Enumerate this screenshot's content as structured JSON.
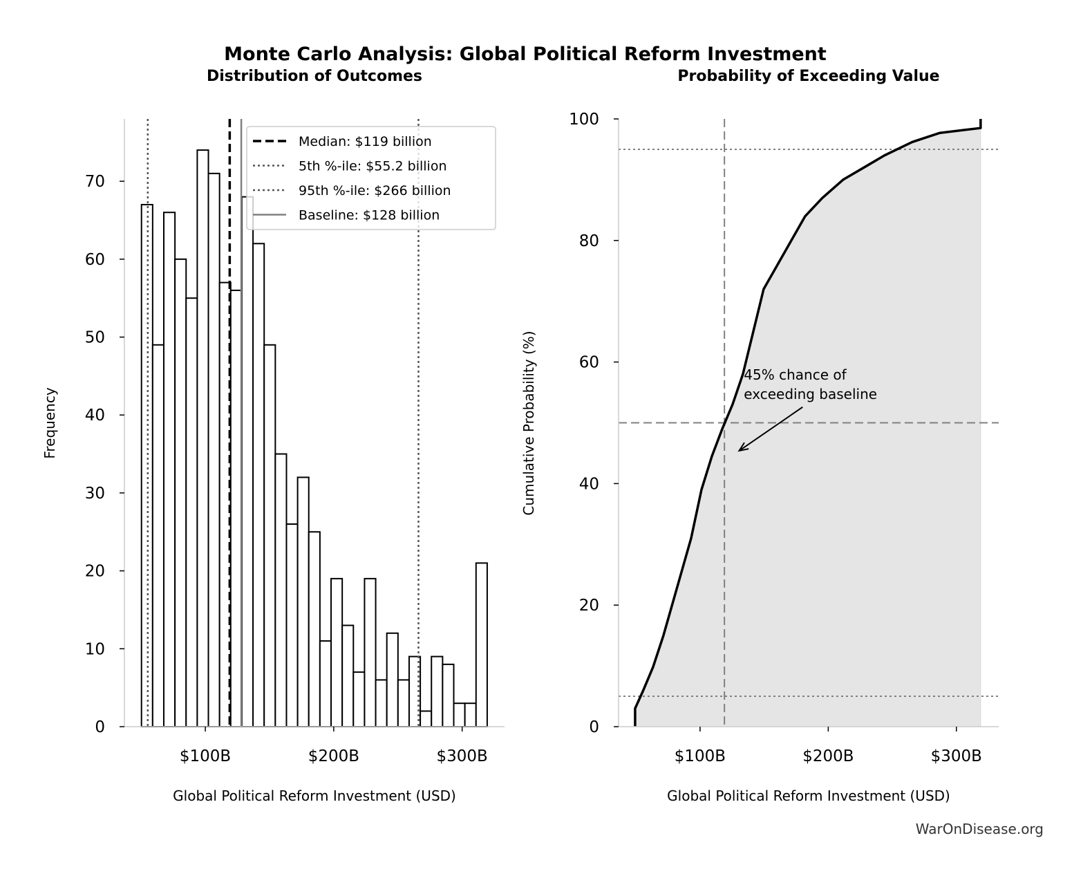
{
  "title": "Monte Carlo Analysis: Global Political Reform Investment",
  "watermark": "WarOnDisease.org",
  "colors": {
    "bar_edge": "#000000",
    "bar_fill": "#ffffff",
    "cdf_fill": "#e5e5e5",
    "median": "#000000",
    "percentile": "#555555",
    "baseline": "#808080",
    "ref_line": "#808080"
  },
  "chart_data": [
    {
      "type": "bar",
      "title": "Distribution of Outcomes",
      "xlabel": "Global Political Reform Investment (USD)",
      "ylabel": "Frequency",
      "xlim": [
        37,
        333
      ],
      "ylim": [
        0,
        78
      ],
      "bin_start": 50.3,
      "bin_end": 319.5,
      "values": [
        67,
        49,
        66,
        60,
        55,
        74,
        71,
        57,
        56,
        68,
        62,
        49,
        35,
        26,
        32,
        25,
        11,
        19,
        13,
        7,
        19,
        6,
        12,
        6,
        9,
        2,
        9,
        8,
        3,
        3,
        21
      ],
      "xticks": [
        {
          "value": 100,
          "label": "$100B"
        },
        {
          "value": 200,
          "label": "$200B"
        },
        {
          "value": 300,
          "label": "$300B"
        }
      ],
      "yticks": [
        0,
        10,
        20,
        30,
        40,
        50,
        60,
        70
      ],
      "lines": [
        {
          "value": 119,
          "style": "dashed",
          "label": "Median: $119 billion"
        },
        {
          "value": 55.2,
          "style": "dotted",
          "label": "5th %-ile: $55.2 billion"
        },
        {
          "value": 266,
          "style": "dotted",
          "label": "95th %-ile: $266 billion"
        },
        {
          "value": 128,
          "style": "solid",
          "label": "Baseline: $128 billion"
        }
      ],
      "legend": "top-right",
      "grid": false
    },
    {
      "type": "area",
      "title": "Probability of Exceeding Value",
      "xlabel": "Global Political Reform Investment (USD)",
      "ylabel": "Cumulative Probability (%)",
      "xlim": [
        36.4,
        333
      ],
      "ylim": [
        0,
        100
      ],
      "x": [
        49.3,
        49.3,
        55.3,
        63.3,
        71.4,
        82.2,
        93,
        101.1,
        109.2,
        117.3,
        125.3,
        133.4,
        141.5,
        149.6,
        160.4,
        171.2,
        182,
        195.4,
        211.6,
        227.8,
        243.9,
        265.5,
        287.1,
        318.9,
        318.9
      ],
      "y": [
        0,
        3,
        5.8,
        9.8,
        15,
        23,
        31,
        39,
        44.5,
        49,
        53,
        58,
        65,
        72,
        76,
        80,
        84,
        87,
        90,
        92,
        94,
        96.2,
        97.7,
        98.5,
        100
      ],
      "xticks": [
        {
          "value": 100,
          "label": "$100B"
        },
        {
          "value": 200,
          "label": "$200B"
        },
        {
          "value": 300,
          "label": "$300B"
        }
      ],
      "yticks": [
        0,
        20,
        40,
        60,
        80,
        100
      ],
      "hlines": [
        {
          "value": 95,
          "style": "dotted"
        },
        {
          "value": 50,
          "style": "dashed"
        },
        {
          "value": 5,
          "style": "dotted"
        }
      ],
      "vlines": [
        {
          "value": 119,
          "style": "dashed"
        }
      ],
      "annotation": {
        "text_lines": [
          "45% chance of",
          "exceeding baseline"
        ],
        "text_at": [
          180,
          56
        ],
        "arrow_to": [
          130.5,
          45.4
        ]
      },
      "grid": false
    }
  ]
}
